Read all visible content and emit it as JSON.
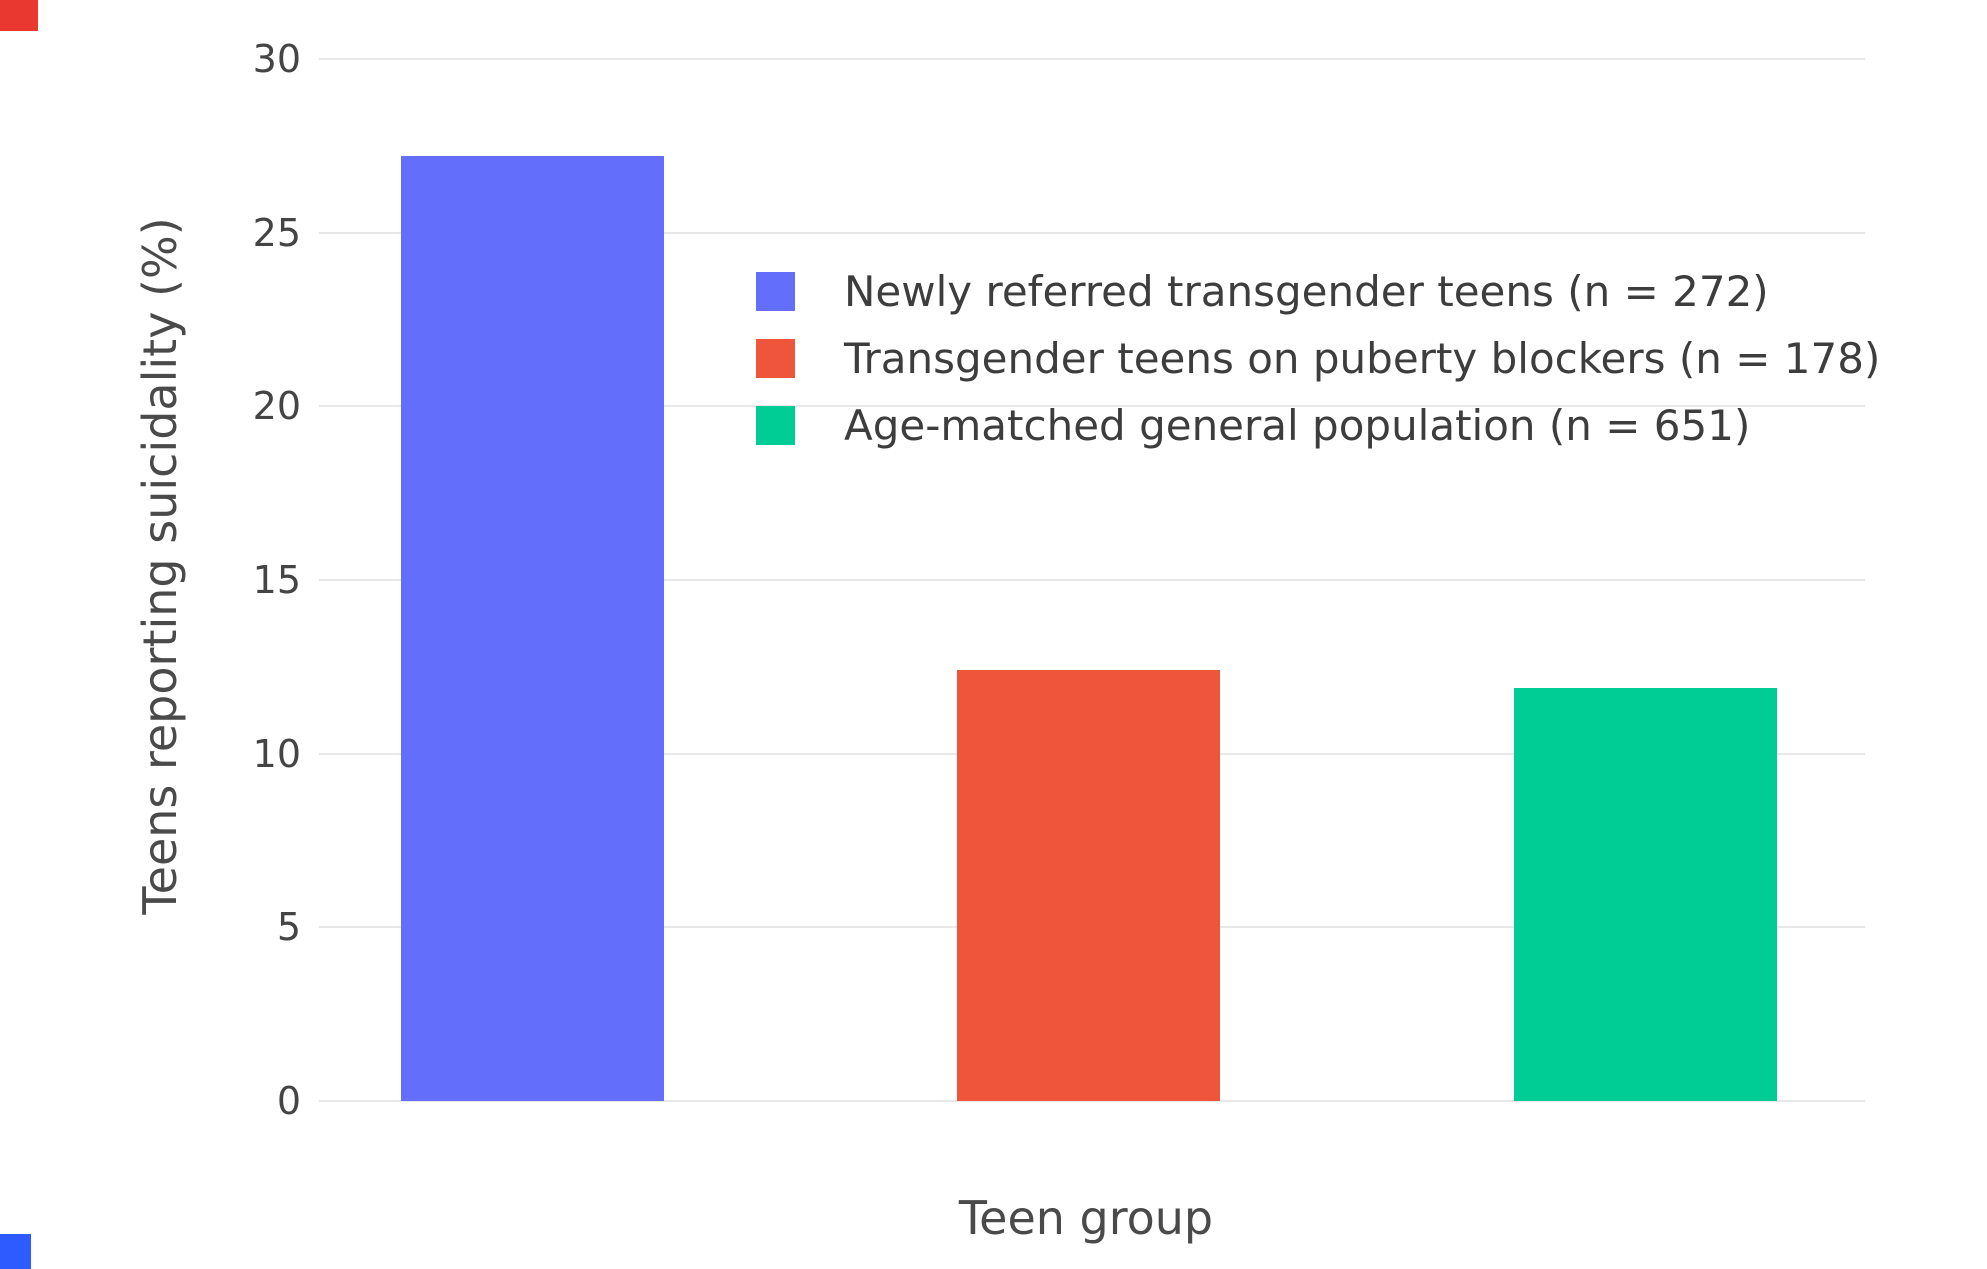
{
  "chart_data": {
    "type": "bar",
    "categories": [
      "Newly referred transgender teens (n = 272)",
      "Transgender teens on puberty blockers (n = 178)",
      "Age-matched general population (n = 651)"
    ],
    "values": [
      27.2,
      12.4,
      11.9
    ],
    "colors": [
      "#636EFA",
      "#EF553B",
      "#00CC96"
    ],
    "title": "",
    "xlabel": "Teen group",
    "ylabel": "Teens reporting suicidality (%)",
    "ylim": [
      0,
      30
    ],
    "yticks": [
      0,
      5,
      10,
      15,
      20,
      25,
      30
    ],
    "grid": true,
    "gridline_color": "#e8e8e8",
    "legend_position": "inside-top-center",
    "legend": [
      "Newly referred transgender teens (n = 272)",
      "Transgender teens on puberty blockers (n = 178)",
      "Age-matched general population (n = 651)"
    ]
  },
  "axes": {
    "xlabel": "Teen group",
    "ylabel": "Teens reporting suicidality (%)"
  },
  "markers": {
    "top_left_color": "#e8382f",
    "bottom_left_color": "#2e5bff"
  }
}
